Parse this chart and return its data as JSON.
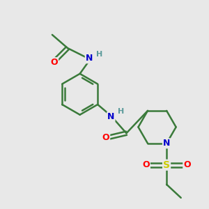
{
  "background_color": "#e8e8e8",
  "bond_color": "#3a7a3a",
  "atom_colors": {
    "O": "#ff0000",
    "N": "#0000cc",
    "S": "#cccc00",
    "H": "#5a9a9a",
    "C": "#3a7a3a"
  },
  "figsize": [
    3.0,
    3.0
  ],
  "dpi": 100
}
